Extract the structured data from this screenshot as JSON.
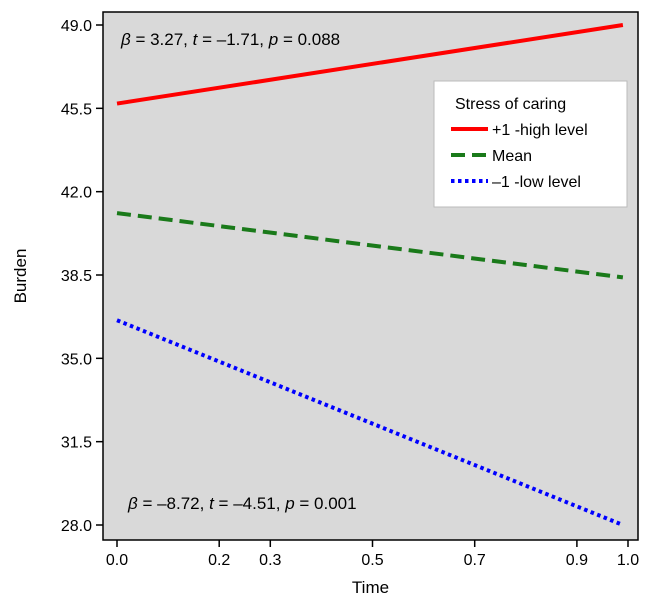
{
  "chart_data": {
    "type": "line",
    "xlabel": "Time",
    "ylabel": "Burden",
    "xlim": [
      0.0,
      1.0
    ],
    "ylim": [
      28.0,
      49.0
    ],
    "x_ticks": [
      0.0,
      0.2,
      0.3,
      0.5,
      0.7,
      0.9,
      1.0
    ],
    "x_tick_labels": [
      "0.0",
      "0.2",
      "0.3",
      "0.5",
      "0.7",
      "0.9",
      "1.0"
    ],
    "y_ticks": [
      28.0,
      31.5,
      35.0,
      38.5,
      42.0,
      45.5,
      49.0
    ],
    "y_tick_labels": [
      "28.0",
      "31.5",
      "35.0",
      "38.5",
      "42.0",
      "45.5",
      "49.0"
    ],
    "background_color": "#d9d9d9",
    "legend": {
      "title": "Stress of caring",
      "placement": "upper-right"
    },
    "series": [
      {
        "name": "+1 -high level",
        "x": [
          0.0,
          0.99
        ],
        "y": [
          45.7,
          49.0
        ],
        "color": "#ff0000",
        "style": "solid"
      },
      {
        "name": "Mean",
        "x": [
          0.0,
          0.99
        ],
        "y": [
          41.1,
          38.4
        ],
        "color": "#1a7a1a",
        "style": "dashed"
      },
      {
        "name": "–1 -low level",
        "x": [
          0.0,
          0.99
        ],
        "y": [
          36.6,
          28.0
        ],
        "color": "#0000ff",
        "style": "dotted"
      }
    ],
    "annotations": [
      {
        "id": "top",
        "parts": [
          {
            "t": "β",
            "i": true
          },
          {
            "t": " = 3.27, ",
            "i": false
          },
          {
            "t": "t",
            "i": true
          },
          {
            "t": " = –1.71, ",
            "i": false
          },
          {
            "t": "p",
            "i": true
          },
          {
            "t": " = 0.088",
            "i": false
          }
        ]
      },
      {
        "id": "bottom",
        "parts": [
          {
            "t": "β",
            "i": true
          },
          {
            "t": " = –8.72, ",
            "i": false
          },
          {
            "t": "t",
            "i": true
          },
          {
            "t": " = –4.51, ",
            "i": false
          },
          {
            "t": "p",
            "i": true
          },
          {
            "t": " = 0.001",
            "i": false
          }
        ]
      }
    ]
  }
}
